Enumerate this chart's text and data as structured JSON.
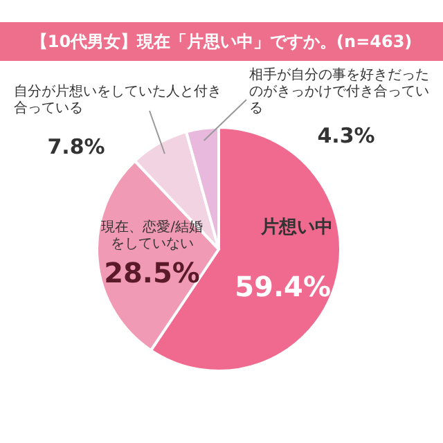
{
  "chart_data": {
    "type": "pie",
    "title": "【10代男女】現在「片思い中」ですか。(n=463)",
    "categories": [
      "片想い中",
      "現在、恋愛/結婚をしていない",
      "自分が片想いをしていた人と付き合っている",
      "相手が自分の事を好きだったのがきっかけで付き合っている"
    ],
    "values": [
      59.4,
      28.5,
      7.8,
      4.3
    ],
    "value_labels": [
      "59.4%",
      "28.5%",
      "7.8%",
      "4.3%"
    ],
    "colors": [
      "#f06a8f",
      "#f19ab5",
      "#f2d3e2",
      "#e9b9dd"
    ]
  }
}
